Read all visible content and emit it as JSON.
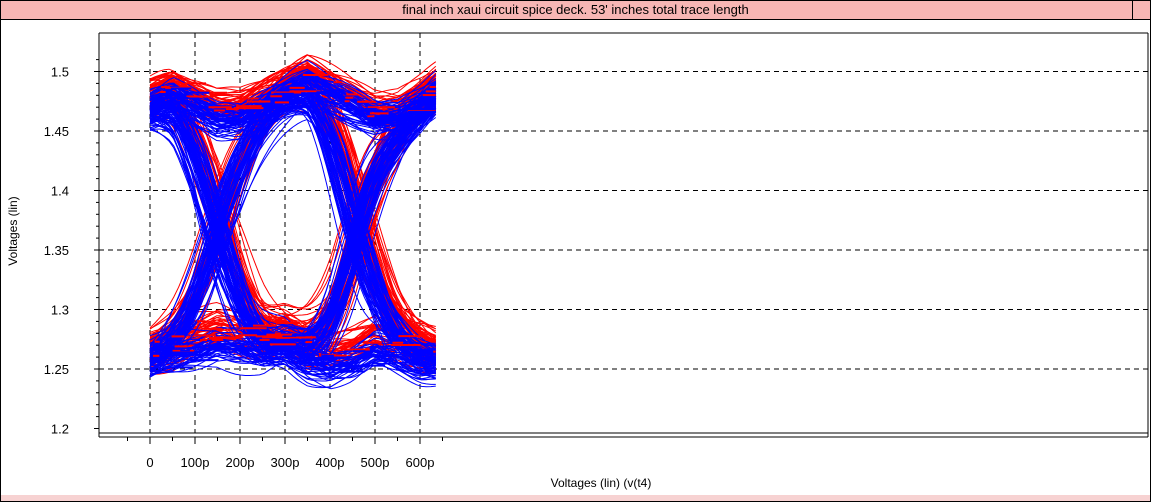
{
  "window": {
    "title": "final inch xaui circuit spice deck. 53' inches total trace length"
  },
  "chart_data": {
    "type": "line",
    "title": "final inch xaui circuit spice deck. 53' inches total trace length",
    "xlabel": "Voltages (lin) (v(t4)",
    "ylabel": "Voltages (lin)",
    "x_unit": "s",
    "xlim": [
      -3e-11,
      6.65e-10
    ],
    "ylim": [
      1.1985,
      1.5245
    ],
    "x_ticks": [
      {
        "value": 0,
        "label": "0"
      },
      {
        "value": 1e-10,
        "label": "100p"
      },
      {
        "value": 2e-10,
        "label": "200p"
      },
      {
        "value": 3e-10,
        "label": "300p"
      },
      {
        "value": 4e-10,
        "label": "400p"
      },
      {
        "value": 5e-10,
        "label": "500p"
      },
      {
        "value": 6e-10,
        "label": "600p"
      }
    ],
    "y_ticks": [
      {
        "value": 1.2,
        "label": "1.2"
      },
      {
        "value": 1.25,
        "label": "1.25"
      },
      {
        "value": 1.3,
        "label": "1.3"
      },
      {
        "value": 1.35,
        "label": "1.35"
      },
      {
        "value": 1.4,
        "label": "1.4"
      },
      {
        "value": 1.45,
        "label": "1.45"
      },
      {
        "value": 1.5,
        "label": "1.5"
      }
    ],
    "grid": true,
    "x_data_range": [
      0,
      6.35e-10
    ],
    "series": [
      {
        "color": "#ff0000",
        "x": [
          0,
          5e-11,
          1e-10,
          1.5e-10,
          2e-10,
          2.5e-10,
          3e-10,
          3.5e-10,
          4e-10,
          4.5e-10,
          5e-10,
          5.5e-10,
          6e-10,
          6.35e-10
        ],
        "y_high": [
          1.48,
          1.49,
          1.48,
          1.47,
          1.47,
          1.48,
          1.49,
          1.5,
          1.49,
          1.48,
          1.47,
          1.47,
          1.48,
          1.49
        ],
        "y_low": [
          1.265,
          1.27,
          1.28,
          1.285,
          1.28,
          1.275,
          1.28,
          1.27,
          1.265,
          1.27,
          1.28,
          1.275,
          1.27,
          1.265
        ],
        "crossings": [
          1.6e-10,
          4.7e-10
        ],
        "crossing_level": 1.365,
        "transition_width": 2.2e-10
      },
      {
        "color": "#0000ff",
        "x": [
          0,
          5e-11,
          1e-10,
          1.5e-10,
          2e-10,
          2.5e-10,
          3e-10,
          3.5e-10,
          4e-10,
          4.5e-10,
          5e-10,
          5.5e-10,
          6e-10,
          6.35e-10
        ],
        "y_high": [
          1.47,
          1.48,
          1.47,
          1.46,
          1.46,
          1.47,
          1.48,
          1.49,
          1.48,
          1.47,
          1.46,
          1.46,
          1.47,
          1.48
        ],
        "y_low": [
          1.255,
          1.26,
          1.265,
          1.27,
          1.265,
          1.26,
          1.265,
          1.255,
          1.25,
          1.255,
          1.265,
          1.26,
          1.255,
          1.255
        ],
        "crossings": [
          1.5e-10,
          4.6e-10
        ],
        "crossing_level": 1.355,
        "transition_width": 2.3e-10
      }
    ]
  }
}
